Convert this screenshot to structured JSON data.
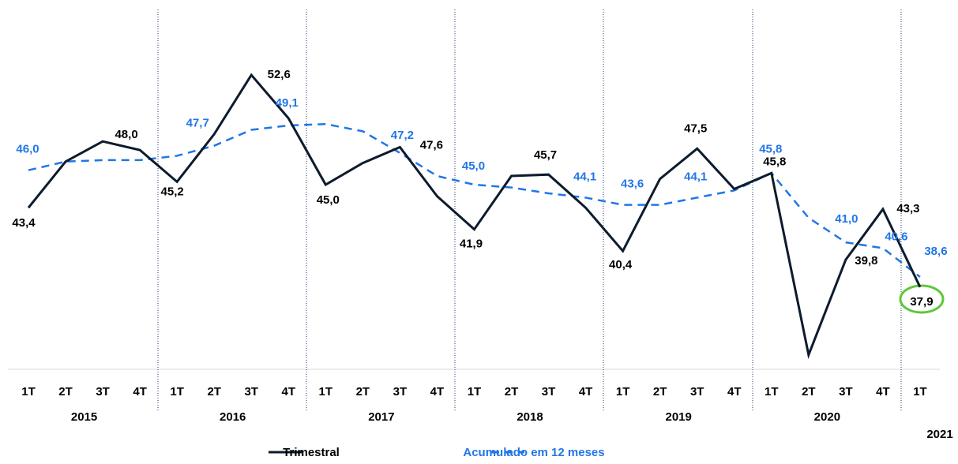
{
  "chart_data": {
    "type": "line",
    "categories": [
      "1T",
      "2T",
      "3T",
      "4T",
      "1T",
      "2T",
      "3T",
      "4T",
      "1T",
      "2T",
      "3T",
      "4T",
      "1T",
      "2T",
      "3T",
      "4T",
      "1T",
      "2T",
      "3T",
      "4T",
      "1T",
      "2T",
      "3T",
      "4T",
      "1T"
    ],
    "years": [
      "2015",
      "2016",
      "2017",
      "2018",
      "2019",
      "2020",
      "2021"
    ],
    "ylim": [
      32.2,
      57.8
    ],
    "legend": "bottom",
    "series": [
      {
        "name": "Trimestral",
        "color": "#0d1b2e",
        "style": "solid",
        "values": [
          43.4,
          46.6,
          48.0,
          47.4,
          45.2,
          48.5,
          52.6,
          49.6,
          45.0,
          46.5,
          47.6,
          44.2,
          41.9,
          45.6,
          45.7,
          43.4,
          40.4,
          45.4,
          47.5,
          44.7,
          45.8,
          33.2,
          39.8,
          43.3,
          37.9
        ],
        "value_labels": [
          "43,4",
          null,
          "48,0",
          null,
          "45,2",
          null,
          "52,6",
          null,
          "45,0",
          null,
          "47,6",
          null,
          "41,9",
          null,
          "45,7",
          null,
          "40,4",
          null,
          "47,5",
          null,
          "45,8",
          null,
          "39,8",
          "43,3",
          "37,9"
        ]
      },
      {
        "name": "Acumulado em 12 meses",
        "color": "#2176e6",
        "style": "dashed",
        "values": [
          46.0,
          46.6,
          46.7,
          46.7,
          47.0,
          47.7,
          48.8,
          49.1,
          49.2,
          48.7,
          47.2,
          45.6,
          45.0,
          44.8,
          44.4,
          44.1,
          43.6,
          43.6,
          44.1,
          44.6,
          45.8,
          42.7,
          41.0,
          40.6,
          38.6
        ],
        "value_labels": [
          "46,0",
          null,
          null,
          null,
          null,
          "47,7",
          null,
          "49,1",
          null,
          null,
          "47,2",
          null,
          "45,0",
          null,
          null,
          "44,1",
          "43,6",
          null,
          "44,1",
          null,
          "45,8",
          null,
          "41,0",
          "40,6",
          "38,6"
        ]
      }
    ]
  }
}
